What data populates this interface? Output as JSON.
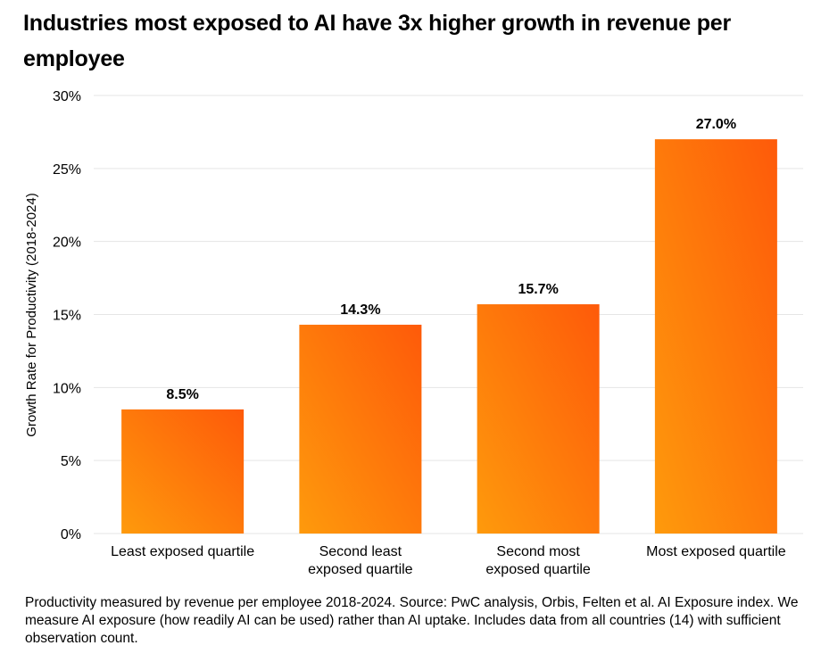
{
  "title": "Industries most exposed to AI have 3x higher growth in revenue per employee",
  "footnote": "Productivity measured by revenue per employee 2018-2024. Source: PwC analysis, Orbis, Felten et al. AI Exposure index. We measure AI exposure (how readily AI can be used) rather than AI uptake. Includes data from all countries (14) with sufficient observation count.",
  "colors": {
    "bar_top": "#FE5A0A",
    "bar_bottom": "#FE9A0C",
    "grid": "#e5e5e5",
    "text": "#000000"
  },
  "chart_data": {
    "type": "bar",
    "title": "Industries most exposed to AI have 3x higher growth in revenue per employee",
    "xlabel": "",
    "ylabel": "Growth Rate for Productivity (2018-2024)",
    "ylim": [
      0,
      30
    ],
    "yticks": [
      0,
      5,
      10,
      15,
      20,
      25,
      30
    ],
    "ytick_labels": [
      "0%",
      "5%",
      "10%",
      "15%",
      "20%",
      "25%",
      "30%"
    ],
    "grid": true,
    "categories": [
      [
        "Least exposed quartile"
      ],
      [
        "Second least",
        "exposed quartile"
      ],
      [
        "Second most",
        "exposed quartile"
      ],
      [
        "Most exposed quartile"
      ]
    ],
    "values": [
      8.5,
      14.3,
      15.7,
      27.0
    ],
    "value_labels": [
      "8.5%",
      "14.3%",
      "15.7%",
      "27.0%"
    ]
  }
}
